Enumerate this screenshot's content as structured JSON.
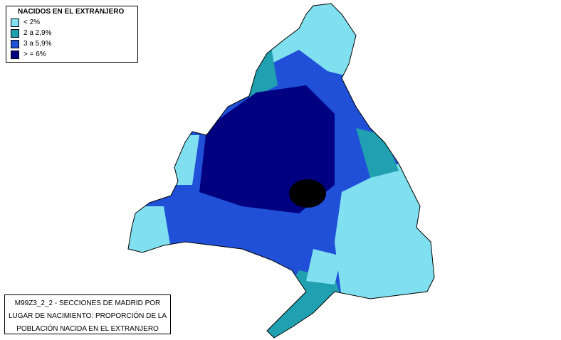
{
  "legend": {
    "title": "NACIDOS EN EL EXTRANJERO",
    "items": [
      {
        "label": "< 2%",
        "color": "#80e0f0"
      },
      {
        "label": "2 a 2,9%",
        "color": "#20a0b0"
      },
      {
        "label": "3 a 5,9%",
        "color": "#2050d8"
      },
      {
        "label": "> = 6%",
        "color": "#000080"
      }
    ]
  },
  "caption": {
    "lines": [
      "M99Z3_2_2 - SECCIONES DE MADRID POR",
      "LUGAR DE NACIMIENTO: PROPORCIÓN DE LA",
      "POBLACIÓN NACIDA EN EL EXTRANJERO"
    ]
  }
}
